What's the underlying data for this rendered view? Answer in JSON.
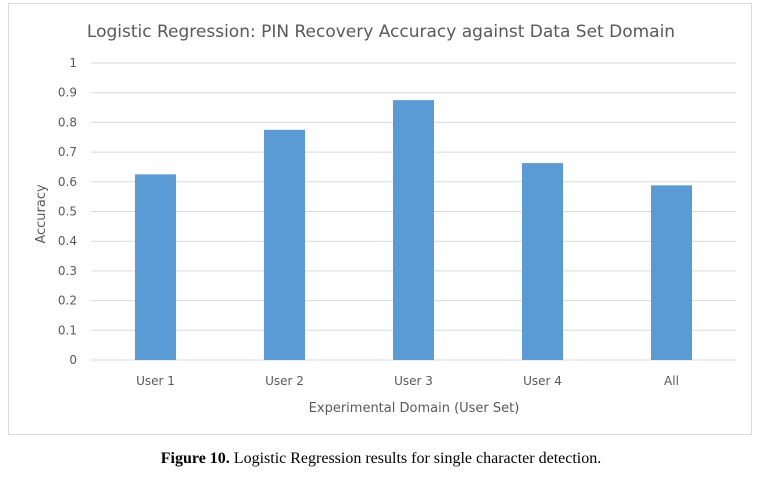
{
  "chart_data": {
    "type": "bar",
    "title": "Logistic Regression: PIN Recovery Accuracy against Data Set Domain",
    "xlabel": "Experimental Domain (User Set)",
    "ylabel": "Accuracy",
    "categories": [
      "User 1",
      "User 2",
      "User 3",
      "User 4",
      "All"
    ],
    "values": [
      0.625,
      0.775,
      0.875,
      0.663,
      0.588
    ],
    "ylim": [
      0,
      1
    ],
    "yticks": [
      "0",
      "0.1",
      "0.2",
      "0.3",
      "0.4",
      "0.5",
      "0.6",
      "0.7",
      "0.8",
      "0.9",
      "1"
    ],
    "grid": true,
    "legend": "none",
    "bar_color": "#5b9bd5",
    "grid_color": "#d9d9d9"
  },
  "caption": {
    "label": "Figure 10.",
    "text": " Logistic Regression results for single character detection."
  }
}
